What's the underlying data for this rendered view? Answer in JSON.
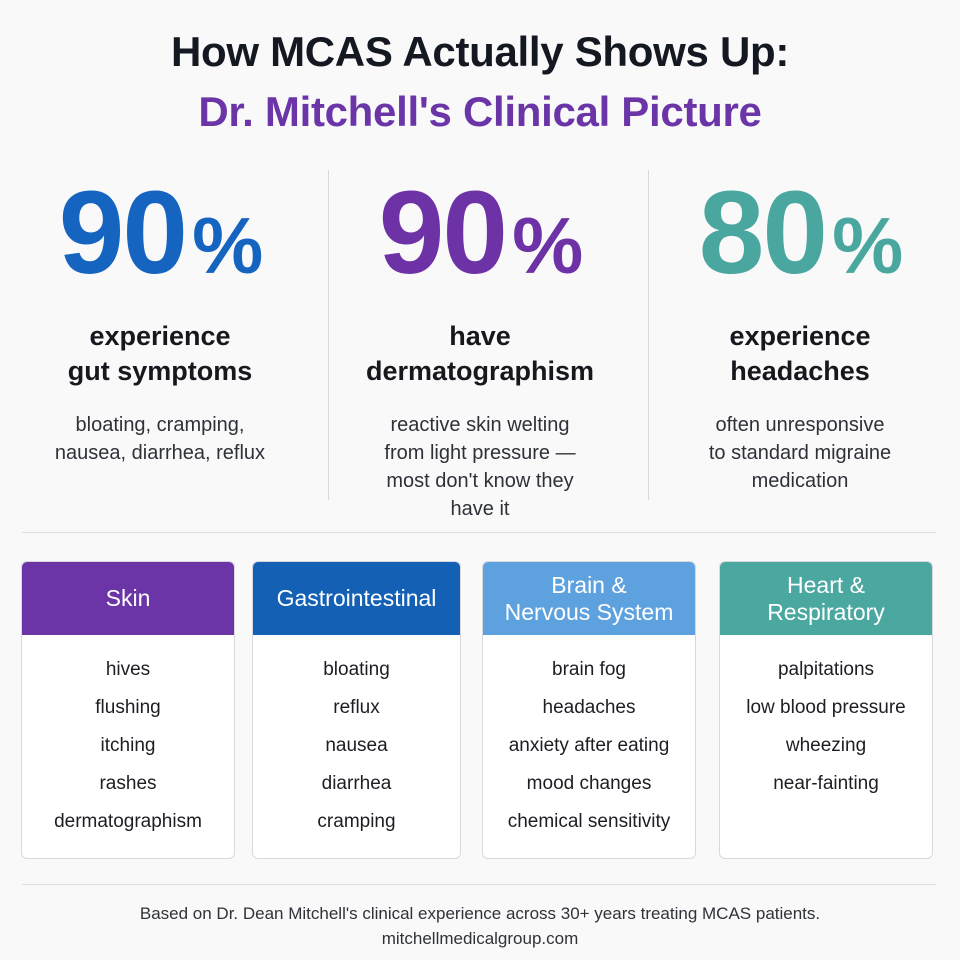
{
  "title": {
    "line1": "How MCAS Actually Shows Up:",
    "line2": "Dr. Mitchell's Clinical Picture"
  },
  "colors": {
    "title_dark": "#141821",
    "title_purple": "#6b35a8",
    "stat_blue": "#1565c0",
    "stat_purple": "#6d33a6",
    "stat_teal": "#4aa79f",
    "skin_header": "#6b35a8",
    "gi_header": "#1460b5",
    "brain_header": "#5da2df",
    "heart_header": "#4ba8a0"
  },
  "stats": [
    {
      "number": "90",
      "percent": "%",
      "heading_line1": "experience",
      "heading_line2": "gut symptoms",
      "desc": [
        "bloating, cramping,",
        "nausea, diarrhea, reflux"
      ]
    },
    {
      "number": "90",
      "percent": "%",
      "heading_line1": "have",
      "heading_line2": "dermatographism",
      "desc": [
        "reactive skin welting",
        "from light pressure —",
        "most don't know they",
        "have it"
      ]
    },
    {
      "number": "80",
      "percent": "%",
      "heading_line1": "experience",
      "heading_line2": "headaches",
      "desc": [
        "often unresponsive",
        "to standard migraine",
        "medication"
      ]
    }
  ],
  "categories": [
    {
      "header": [
        "Skin"
      ],
      "items": [
        "hives",
        "flushing",
        "itching",
        "rashes",
        "dermatographism"
      ]
    },
    {
      "header": [
        "Gastrointestinal"
      ],
      "items": [
        "bloating",
        "reflux",
        "nausea",
        "diarrhea",
        "cramping"
      ]
    },
    {
      "header": [
        "Brain &",
        "Nervous System"
      ],
      "items": [
        "brain fog",
        "headaches",
        "anxiety after eating",
        "mood changes",
        "chemical sensitivity"
      ]
    },
    {
      "header": [
        "Heart &",
        "Respiratory"
      ],
      "items": [
        "palpitations",
        "low blood pressure",
        "wheezing",
        "near-fainting"
      ]
    }
  ],
  "footer": {
    "line1": "Based on Dr. Dean Mitchell's clinical experience across 30+ years treating MCAS patients.",
    "line2": "mitchellmedicalgroup.com"
  }
}
